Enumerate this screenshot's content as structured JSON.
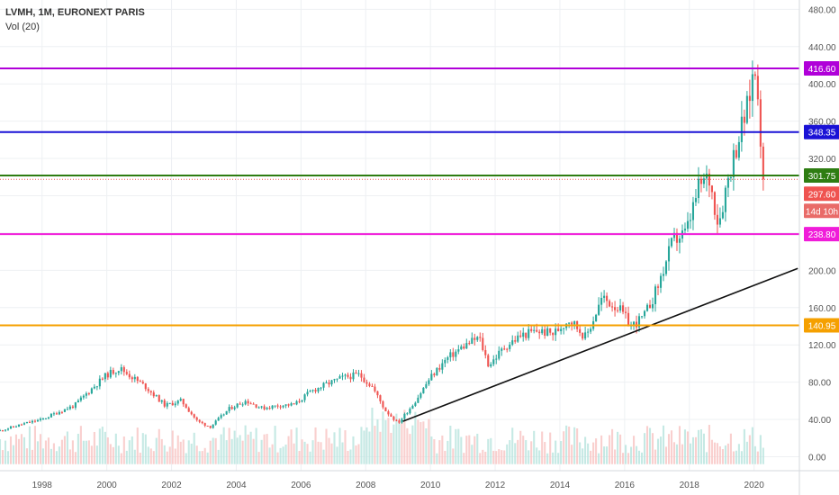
{
  "legend": {
    "symbol": "LVMH, 1M, EURONEXT PARIS",
    "indicator": "Vol (20)"
  },
  "chart_data": {
    "type": "candlestick",
    "y_axis": {
      "min": -15,
      "max": 490,
      "ticks": [
        "480.00",
        "440.00",
        "400.00",
        "360.00",
        "320.00",
        "280.00",
        "240.00",
        "200.00",
        "160.00",
        "120.00",
        "80.00",
        "40.00",
        "0.00"
      ],
      "tick_values": [
        480,
        440,
        400,
        360,
        320,
        280,
        240,
        200,
        160,
        120,
        80,
        40,
        0
      ]
    },
    "x_axis": {
      "start": 1996.7,
      "end": 2021.4,
      "ticks": [
        "1998",
        "2000",
        "2002",
        "2004",
        "2006",
        "2008",
        "2010",
        "2012",
        "2014",
        "2016",
        "2018",
        "2020"
      ],
      "tick_values": [
        1998,
        2000,
        2002,
        2004,
        2006,
        2008,
        2010,
        2012,
        2014,
        2016,
        2018,
        2020
      ]
    },
    "horizontal_levels": [
      {
        "value": 416.6,
        "label": "416.60",
        "color": "#b000d9"
      },
      {
        "value": 348.35,
        "label": "348.35",
        "color": "#1a12d6"
      },
      {
        "value": 301.75,
        "label": "301.75",
        "color": "#2e7d12"
      },
      {
        "value": 238.8,
        "label": "238.80",
        "color": "#f01cd9"
      },
      {
        "value": 140.95,
        "label": "140.95",
        "color": "#f5a000"
      }
    ],
    "current_price": {
      "value": 297.6,
      "label": "297.60",
      "countdown": "14d 10h",
      "color": "#ef5350"
    },
    "trendline": {
      "x1": 2009.15,
      "y1": 38,
      "x2": 2021.35,
      "y2": 202,
      "color": "#111111"
    },
    "anchors": [
      [
        1996.7,
        28
      ],
      [
        1997.5,
        36
      ],
      [
        1998.0,
        40
      ],
      [
        1998.5,
        48
      ],
      [
        1999.0,
        55
      ],
      [
        1999.5,
        72
      ],
      [
        2000.0,
        88
      ],
      [
        2000.4,
        95
      ],
      [
        2000.8,
        85
      ],
      [
        2001.2,
        75
      ],
      [
        2001.8,
        55
      ],
      [
        2002.3,
        60
      ],
      [
        2002.8,
        38
      ],
      [
        2003.2,
        32
      ],
      [
        2003.8,
        52
      ],
      [
        2004.3,
        60
      ],
      [
        2004.8,
        52
      ],
      [
        2005.3,
        55
      ],
      [
        2005.8,
        56
      ],
      [
        2006.3,
        70
      ],
      [
        2006.8,
        78
      ],
      [
        2007.3,
        85
      ],
      [
        2007.8,
        88
      ],
      [
        2008.2,
        75
      ],
      [
        2008.6,
        50
      ],
      [
        2009.0,
        36
      ],
      [
        2009.5,
        58
      ],
      [
        2010.0,
        85
      ],
      [
        2010.5,
        105
      ],
      [
        2011.0,
        118
      ],
      [
        2011.5,
        128
      ],
      [
        2011.8,
        98
      ],
      [
        2012.3,
        118
      ],
      [
        2012.8,
        130
      ],
      [
        2013.3,
        135
      ],
      [
        2013.8,
        132
      ],
      [
        2014.3,
        148
      ],
      [
        2014.8,
        128
      ],
      [
        2015.3,
        170
      ],
      [
        2015.8,
        160
      ],
      [
        2016.2,
        140
      ],
      [
        2016.6,
        150
      ],
      [
        2017.0,
        180
      ],
      [
        2017.5,
        232
      ],
      [
        2017.9,
        240
      ],
      [
        2018.3,
        290
      ],
      [
        2018.6,
        300
      ],
      [
        2018.9,
        250
      ],
      [
        2019.2,
        300
      ],
      [
        2019.5,
        340
      ],
      [
        2019.8,
        375
      ],
      [
        2020.0,
        418
      ],
      [
        2020.15,
        390
      ],
      [
        2020.25,
        297.6
      ]
    ]
  }
}
